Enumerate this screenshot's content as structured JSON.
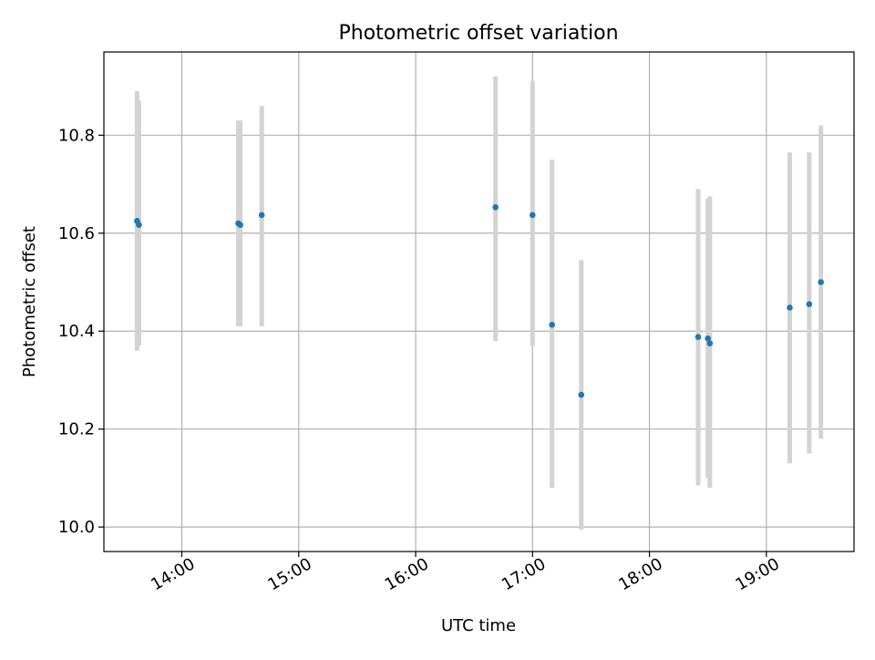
{
  "chart_data": {
    "type": "scatter",
    "title": "Photometric offset variation",
    "xlabel": "UTC time",
    "ylabel": "Photometric offset",
    "x_axis": {
      "ticks": [
        "14:00",
        "15:00",
        "16:00",
        "17:00",
        "18:00",
        "19:00"
      ],
      "range": [
        "13:20",
        "19:45"
      ]
    },
    "ylim": [
      9.95,
      10.97
    ],
    "yticks": [
      "10.0",
      "10.2",
      "10.4",
      "10.6",
      "10.8"
    ],
    "grid": true,
    "series": [
      {
        "marker_color": "#1f77b4",
        "errorbar_color": "#d3d3d3",
        "points": [
          {
            "t": "13:37",
            "y": 10.625,
            "lo": 10.36,
            "hi": 10.89
          },
          {
            "t": "13:38",
            "y": 10.617,
            "lo": 10.37,
            "hi": 10.87
          },
          {
            "t": "14:29",
            "y": 10.62,
            "lo": 10.41,
            "hi": 10.83
          },
          {
            "t": "14:30",
            "y": 10.617,
            "lo": 10.41,
            "hi": 10.83
          },
          {
            "t": "14:41",
            "y": 10.637,
            "lo": 10.41,
            "hi": 10.86
          },
          {
            "t": "16:41",
            "y": 10.653,
            "lo": 10.38,
            "hi": 10.92
          },
          {
            "t": "17:00",
            "y": 10.637,
            "lo": 10.37,
            "hi": 10.91
          },
          {
            "t": "17:10",
            "y": 10.413,
            "lo": 10.08,
            "hi": 10.75
          },
          {
            "t": "17:25",
            "y": 10.27,
            "lo": 9.995,
            "hi": 10.545
          },
          {
            "t": "18:25",
            "y": 10.388,
            "lo": 10.085,
            "hi": 10.69
          },
          {
            "t": "18:30",
            "y": 10.385,
            "lo": 10.1,
            "hi": 10.67
          },
          {
            "t": "18:31",
            "y": 10.375,
            "lo": 10.08,
            "hi": 10.675
          },
          {
            "t": "19:12",
            "y": 10.448,
            "lo": 10.13,
            "hi": 10.765
          },
          {
            "t": "19:22",
            "y": 10.455,
            "lo": 10.15,
            "hi": 10.765
          },
          {
            "t": "19:28",
            "y": 10.5,
            "lo": 10.18,
            "hi": 10.82
          }
        ]
      }
    ]
  }
}
